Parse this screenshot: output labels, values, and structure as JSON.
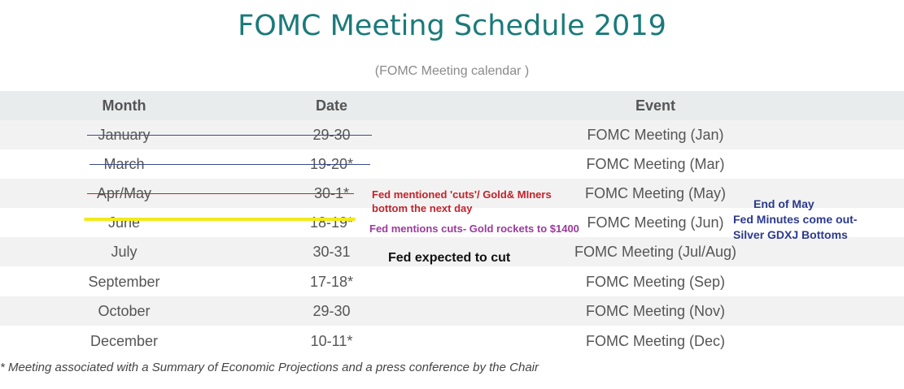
{
  "title": "FOMC Meeting Schedule 2019",
  "subtitle": "(FOMC Meeting calendar )",
  "headers": {
    "month": "Month",
    "date": "Date",
    "event": "Event"
  },
  "rows": [
    {
      "month": "January",
      "date": "29-30",
      "event": "FOMC Meeting (Jan)"
    },
    {
      "month": "March",
      "date": "19-20*",
      "event": "FOMC Meeting (Mar)"
    },
    {
      "month": "Apr/May",
      "date": "30-1*",
      "event": "FOMC Meeting (May)"
    },
    {
      "month": "June",
      "date": "18-19*",
      "event": "FOMC Meeting (Jun)"
    },
    {
      "month": "July",
      "date": "30-31",
      "event": "FOMC Meeting (Jul/Aug)"
    },
    {
      "month": "September",
      "date": "17-18*",
      "event": "FOMC Meeting (Sep)"
    },
    {
      "month": "October",
      "date": "29-30",
      "event": "FOMC Meeting (Nov)"
    },
    {
      "month": "December",
      "date": "10-11*",
      "event": "FOMC Meeting (Dec)"
    }
  ],
  "annotations": {
    "may_line1": "Fed mentioned 'cuts'/ Gold& MIners",
    "may_line2": "bottom the next day",
    "june": "Fed mentions cuts- Gold rockets to $1400",
    "july": "Fed expected to cut",
    "end_may_line1": "End of May",
    "end_may_line2": "Fed Minutes come out-",
    "end_may_line3": "Silver GDXJ Bottoms"
  },
  "footnote": "* Meeting associated with a Summary of Economic Projections and a press conference by the Chair",
  "colors": {
    "title": "#1b7a7a",
    "strike_blue": "#3a4a8c",
    "strike_red": "#c0232b",
    "highlight": "#f2ea1b",
    "note_red": "#c0232b",
    "note_purple": "#9b3a9b",
    "note_blue": "#2b3a8c"
  }
}
